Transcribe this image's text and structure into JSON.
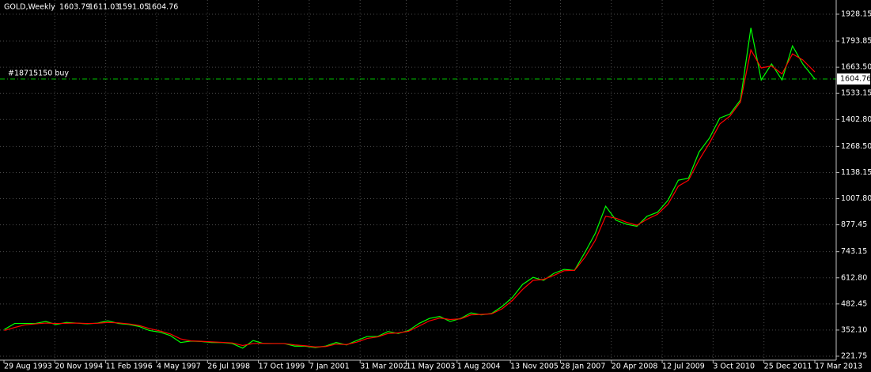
{
  "chart_data": {
    "type": "line",
    "symbol": "GOLD,Weekly",
    "ohlc": [
      1603.79,
      1611.03,
      1591.05,
      1604.76
    ],
    "order_line": {
      "label": "#18715150 buy",
      "value": 1604.76,
      "color": "#00c000"
    },
    "price_label": 1604.76,
    "grid": true,
    "ylim": [
      202,
      1999
    ],
    "yticks": [
      221.75,
      {
        "value": 352.1,
        "label": "352.10"
      },
      482.45,
      {
        "value": 612.8,
        "label": "612.80"
      },
      743.15,
      877.45,
      {
        "value": 1007.8,
        "label": "1007.80"
      },
      1138.15,
      {
        "value": 1268.5,
        "label": "1268.50"
      },
      {
        "value": 1402.8,
        "label": "1402.80"
      },
      1533.15,
      {
        "value": 1663.5,
        "label": "1663.50"
      },
      1793.85,
      1928.15
    ],
    "xlim": [
      "29 Aug 1993",
      "17 Mar 2013"
    ],
    "xticks": [
      "29 Aug 1993",
      "20 Nov 1994",
      "11 Feb 1996",
      "4 May 1997",
      "26 Jul 1998",
      "17 Oct 1999",
      "7 Jan 2001",
      "31 Mar 2002",
      "11 May 2003",
      "1 Aug 2004",
      "13 Nov 2005",
      "28 Jan 2007",
      "20 Apr 2008",
      "12 Jul 2009",
      "3 Oct 2010",
      "25 Dec 2011",
      "17 Mar 2013"
    ],
    "x": [
      "1 Sep 1993",
      "1 Dec 1993",
      "1 Mar 1994",
      "1 Jun 1994",
      "1 Sep 1994",
      "1 Dec 1994",
      "1 Mar 1995",
      "1 Jun 1995",
      "1 Sep 1995",
      "1 Dec 1995",
      "1 Mar 1996",
      "1 Jun 1996",
      "1 Sep 1996",
      "1 Dec 1996",
      "1 Mar 1997",
      "1 Jun 1997",
      "1 Sep 1997",
      "1 Dec 1997",
      "1 Mar 1998",
      "1 Jun 1998",
      "1 Sep 1998",
      "1 Dec 1998",
      "1 Mar 1999",
      "1 Jun 1999",
      "1 Sep 1999",
      "1 Dec 1999",
      "1 Mar 2000",
      "1 Jun 2000",
      "1 Sep 2000",
      "1 Dec 2000",
      "1 Mar 2001",
      "1 Jun 2001",
      "1 Sep 2001",
      "1 Dec 2001",
      "1 Mar 2002",
      "1 Jun 2002",
      "1 Sep 2002",
      "1 Dec 2002",
      "1 Mar 2003",
      "1 Jun 2003",
      "1 Sep 2003",
      "1 Dec 2003",
      "1 Mar 2004",
      "1 Jun 2004",
      "1 Sep 2004",
      "1 Dec 2004",
      "1 Mar 2005",
      "1 Jun 2005",
      "1 Sep 2005",
      "1 Dec 2005",
      "1 Mar 2006",
      "1 Jun 2006",
      "1 Sep 2006",
      "1 Dec 2006",
      "1 Mar 2007",
      "1 Jun 2007",
      "1 Sep 2007",
      "1 Dec 2007",
      "1 Mar 2008",
      "1 Jun 2008",
      "1 Sep 2008",
      "1 Dec 2008",
      "1 Mar 2009",
      "1 Jun 2009",
      "1 Sep 2009",
      "1 Dec 2009",
      "1 Mar 2010",
      "1 Jun 2010",
      "1 Sep 2010",
      "1 Dec 2010",
      "1 Mar 2011",
      "1 Jun 2011",
      "1 Sep 2011",
      "1 Dec 2011",
      "1 Mar 2012",
      "1 Jun 2012",
      "1 Sep 2012",
      "1 Dec 2012",
      "17 Mar 2013"
    ],
    "series": [
      {
        "name": "GOLD",
        "color": "#00ff00",
        "values": [
          355,
          385,
          385,
          385,
          395,
          380,
          390,
          387,
          383,
          387,
          398,
          385,
          380,
          370,
          350,
          342,
          325,
          290,
          297,
          295,
          290,
          290,
          285,
          262,
          300,
          285,
          285,
          285,
          272,
          272,
          265,
          272,
          290,
          278,
          300,
          320,
          320,
          345,
          335,
          350,
          385,
          410,
          420,
          395,
          410,
          438,
          428,
          435,
          470,
          515,
          580,
          615,
          600,
          635,
          655,
          650,
          740,
          835,
          970,
          900,
          880,
          870,
          920,
          940,
          1000,
          1100,
          1110,
          1240,
          1310,
          1410,
          1430,
          1500,
          1860,
          1600,
          1680,
          1600,
          1770,
          1680,
          1604.76
        ]
      },
      {
        "name": "MA",
        "color": "#ff0000",
        "values": [
          350,
          365,
          378,
          383,
          387,
          385,
          386,
          387,
          385,
          386,
          390,
          388,
          383,
          375,
          360,
          348,
          333,
          308,
          298,
          296,
          293,
          291,
          288,
          275,
          285,
          286,
          285,
          285,
          278,
          274,
          268,
          270,
          282,
          280,
          292,
          310,
          318,
          335,
          338,
          346,
          372,
          398,
          412,
          405,
          408,
          428,
          430,
          433,
          458,
          500,
          555,
          600,
          605,
          625,
          648,
          650,
          715,
          800,
          920,
          910,
          890,
          875,
          905,
          930,
          980,
          1070,
          1100,
          1200,
          1285,
          1380,
          1420,
          1490,
          1750,
          1660,
          1670,
          1630,
          1730,
          1700,
          1640
        ]
      }
    ]
  }
}
